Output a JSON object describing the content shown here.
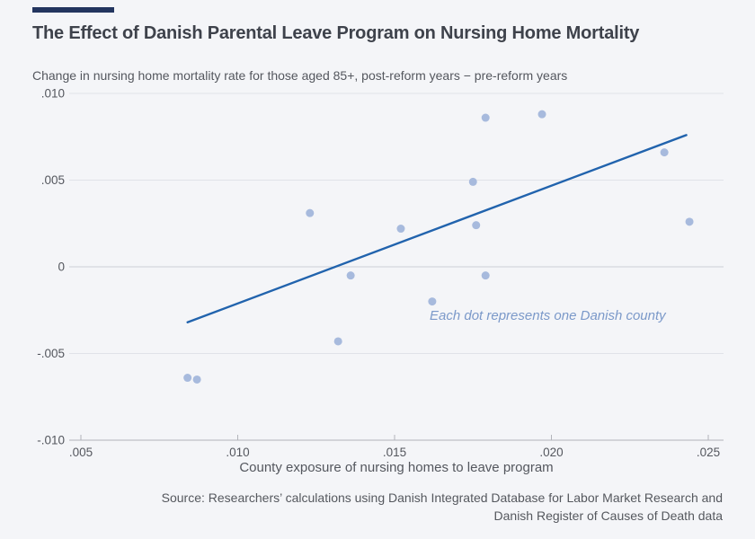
{
  "header": {
    "title": "The Effect of Danish Parental Leave Program on Nursing Home Mortality",
    "subtitle": "Change in nursing home mortality rate for those aged 85+, post-reform years − pre-reform years"
  },
  "chart_data": {
    "type": "scatter",
    "title": "The Effect of Danish Parental Leave Program on Nursing Home Mortality",
    "subtitle": "Change in nursing home mortality rate for those aged 85+, post-reform years − pre-reform years",
    "xlabel": "County exposure of nursing homes to leave program",
    "ylabel": "",
    "xlim": [
      0.00463,
      0.02549
    ],
    "ylim": [
      -0.01,
      0.01
    ],
    "x_ticks": [
      ".005",
      ".010",
      ".015",
      ".020",
      ".025"
    ],
    "x_tick_values": [
      0.005,
      0.01,
      0.015,
      0.02,
      0.025
    ],
    "y_ticks": [
      ".010",
      ".005",
      "0",
      "-.005",
      "-.010"
    ],
    "y_tick_values": [
      0.01,
      0.005,
      0,
      -0.005,
      -0.01
    ],
    "grid": "horizontal",
    "legend": "none",
    "annotation": "Each dot represents one Danish county",
    "points": [
      {
        "x": 0.0084,
        "y": -0.0064
      },
      {
        "x": 0.0087,
        "y": -0.0065
      },
      {
        "x": 0.0123,
        "y": 0.0031
      },
      {
        "x": 0.0132,
        "y": -0.0043
      },
      {
        "x": 0.0136,
        "y": -0.0005
      },
      {
        "x": 0.0152,
        "y": 0.0022
      },
      {
        "x": 0.0162,
        "y": -0.002
      },
      {
        "x": 0.0175,
        "y": 0.0049
      },
      {
        "x": 0.0176,
        "y": 0.0024
      },
      {
        "x": 0.0179,
        "y": 0.0086
      },
      {
        "x": 0.0179,
        "y": -0.0005
      },
      {
        "x": 0.0197,
        "y": 0.0088
      },
      {
        "x": 0.0236,
        "y": 0.0066
      },
      {
        "x": 0.0244,
        "y": 0.0026
      }
    ],
    "trend_line": {
      "x1": 0.0084,
      "y1": -0.0032,
      "x2": 0.0243,
      "y2": 0.0076
    }
  },
  "footer": {
    "source_line1": "Source: Researchers’ calculations using Danish Integrated Database for Labor Market Research and",
    "source_line2": "Danish Register of Causes of Death data"
  },
  "colors": {
    "background": "#f4f5f8",
    "accent_bar": "#23355f",
    "title_text": "#3e424b",
    "body_text": "#54575e",
    "gridline": "#e0e2e8",
    "zero_line": "#cdd0d6",
    "axis_line": "#b2b4ba",
    "dot": "#a7badd",
    "trend_line": "#2163ad",
    "annotation_text": "#7b99c9"
  }
}
